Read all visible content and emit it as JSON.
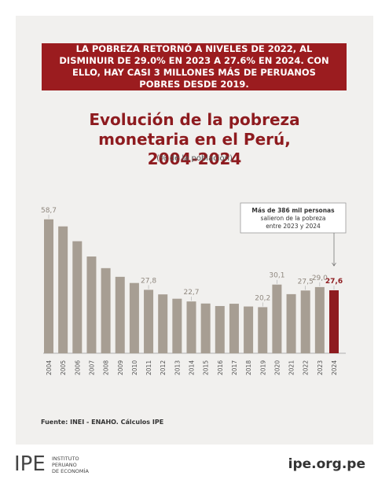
{
  "header": "LA POBREZA RETORNÓ A NIVELES DE 2022, AL DISMINUIR DE 29.0% EN 2023 A 27.6% EN 2024. CON ELLO, HAY CASI 3 MILLONES MÁS DE PERUANOS POBRES DESDE 2019.",
  "chart_data": {
    "type": "bar",
    "title": "Evolución de la pobreza monetaria en el Perú, 2004-2024",
    "subtitle": "(% de la población)",
    "categories": [
      "2004",
      "2005",
      "2006",
      "2007",
      "2008",
      "2009",
      "2010",
      "2011",
      "2012",
      "2013",
      "2014",
      "2015",
      "2016",
      "2017",
      "2018",
      "2019",
      "2020",
      "2021",
      "2022",
      "2023",
      "2024"
    ],
    "values": [
      58.7,
      55.6,
      49.1,
      42.4,
      37.3,
      33.5,
      30.8,
      27.8,
      25.8,
      23.9,
      22.7,
      21.8,
      20.7,
      21.7,
      20.5,
      20.2,
      30.1,
      25.9,
      27.5,
      29.0,
      27.6
    ],
    "value_labels": [
      "58,7",
      null,
      null,
      null,
      null,
      null,
      null,
      "27,8",
      null,
      null,
      "22,7",
      null,
      null,
      null,
      null,
      "20,2",
      "30,1",
      null,
      "27,5",
      "29,0",
      "27,6"
    ],
    "color": "#a79e93",
    "highlight_color": "#8e1b1f",
    "annotation": [
      "Más de 386 mil personas",
      "salieron de la pobreza",
      "entre 2023 y 2024"
    ]
  },
  "source": "Fuente: INEI - ENAHO. Cálculos IPE",
  "logo": {
    "mark": "IPE",
    "lines": [
      "INSTITUTO",
      "PERUANO",
      "DE ECONOMÍA"
    ]
  },
  "url": "ipe.org.pe"
}
